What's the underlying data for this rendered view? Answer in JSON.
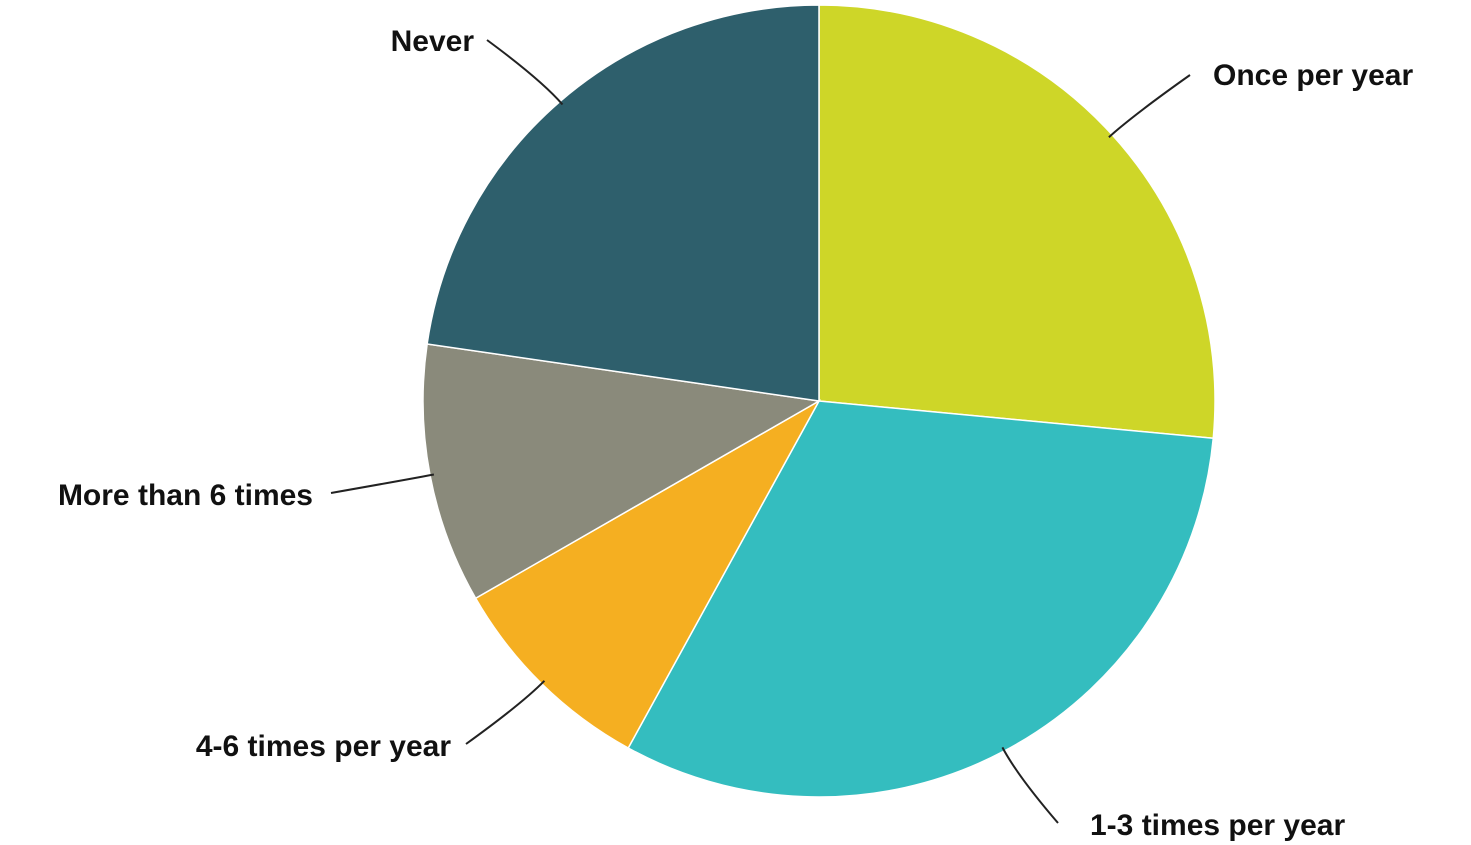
{
  "chart_data": {
    "type": "pie",
    "title": "",
    "start_angle_deg": 0,
    "direction": "clockwise",
    "slices": [
      {
        "label": "Once per year",
        "value": 26.5,
        "color": "#CED628"
      },
      {
        "label": "1-3 times per year",
        "value": 31.5,
        "color": "#34BDBF"
      },
      {
        "label": "4-6 times per year",
        "value": 8.7,
        "color": "#F5AF21"
      },
      {
        "label": "More than 6 times",
        "value": 10.6,
        "color": "#8A8A7B"
      },
      {
        "label": "Never",
        "value": 22.7,
        "color": "#2E5F6C"
      }
    ]
  }
}
